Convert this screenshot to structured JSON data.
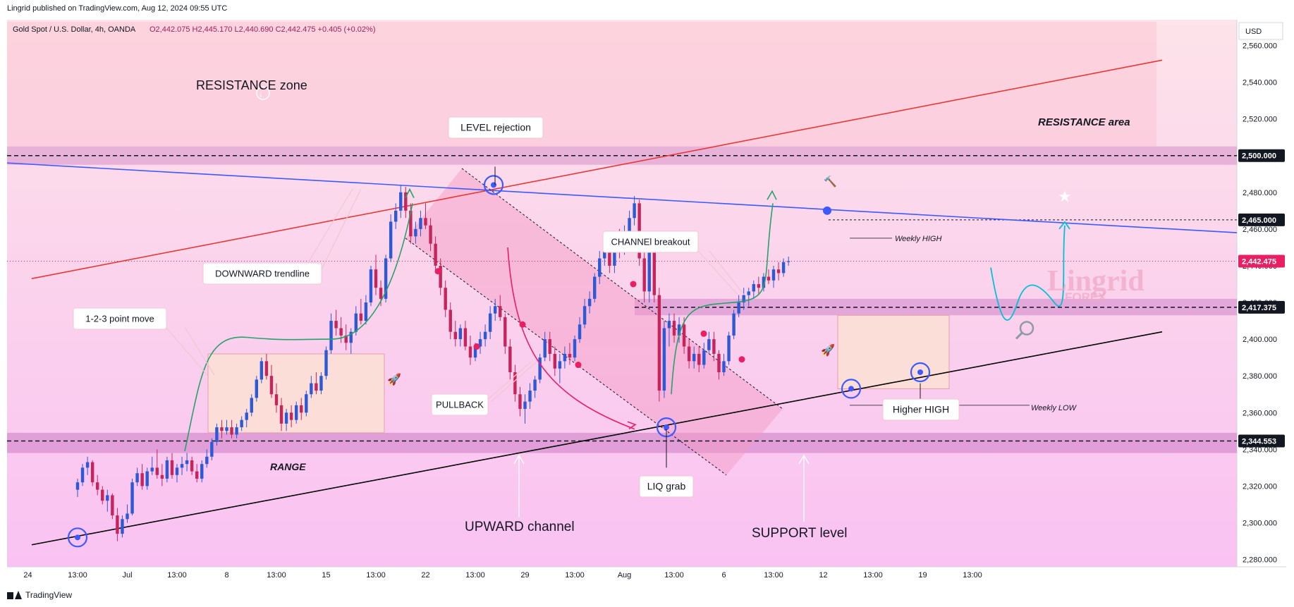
{
  "header": {
    "published": "Lingrid published on TradingView.com, Aug 12, 2024 09:55 UTC"
  },
  "footer": {
    "brand": "TradingView"
  },
  "watermark": {
    "main": "Lingrid",
    "sub": "FOREX"
  },
  "chart_data": {
    "type": "candlestick",
    "title": "Gold Spot / U.S. Dollar, 4h, OANDA",
    "ohlc_text": "O2,442.075  H2,445.170  L2,440.690  C2,442.475  +0.405 (+0.02%)",
    "currency": "USD",
    "y_range": [
      2276,
      2574
    ],
    "y_ticks": [
      2280,
      2300,
      2320,
      2340,
      2360,
      2380,
      2400,
      2420,
      2440,
      2460,
      2480,
      2500,
      2520,
      2540,
      2560
    ],
    "y_tick_labels": [
      "2,280.000",
      "2,300.000",
      "2,320.000",
      "2,340.000",
      "2,360.000",
      "2,380.000",
      "2,400.000",
      "2,420.000",
      "2,440.000",
      "2,460.000",
      "2,480.000",
      "2,500.000",
      "2,520.000",
      "2,540.000",
      "2,560.000"
    ],
    "x_ticks": [
      {
        "i": -10,
        "label": "24"
      },
      {
        "i": 0,
        "label": "13:00"
      },
      {
        "i": 10,
        "label": "Jul"
      },
      {
        "i": 20,
        "label": "13:00"
      },
      {
        "i": 30,
        "label": "8"
      },
      {
        "i": 40,
        "label": "13:00"
      },
      {
        "i": 50,
        "label": "15"
      },
      {
        "i": 60,
        "label": "13:00"
      },
      {
        "i": 70,
        "label": "22"
      },
      {
        "i": 80,
        "label": "13:00"
      },
      {
        "i": 90,
        "label": "29"
      },
      {
        "i": 100,
        "label": "13:00"
      },
      {
        "i": 110,
        "label": "Aug"
      },
      {
        "i": 120,
        "label": "13:00"
      },
      {
        "i": 130,
        "label": "6"
      },
      {
        "i": 140,
        "label": "13:00"
      },
      {
        "i": 150,
        "label": "12"
      },
      {
        "i": 160,
        "label": "13:00"
      },
      {
        "i": 170,
        "label": "19"
      },
      {
        "i": 180,
        "label": "13:00"
      }
    ],
    "price_tags": [
      {
        "value": 2500.0,
        "label": "2,500.000",
        "style": "dark"
      },
      {
        "value": 2465.0,
        "label": "2,465.000",
        "style": "dark"
      },
      {
        "value": 2442.475,
        "label": "2,442.475",
        "style": "accent"
      },
      {
        "value": 2417.375,
        "label": "2,417.375",
        "style": "dark"
      },
      {
        "value": 2344.553,
        "label": "2,344.553",
        "style": "dark"
      }
    ],
    "annotations": {
      "resistance_zone": "RESISTANCE zone",
      "resistance_area": "RESISTANCE area",
      "level_rejection": "LEVEL rejection",
      "downward_trendline": "DOWNWARD trendline",
      "point_move": "1-2-3 point move",
      "channel_breakout": "CHANNEl breakout",
      "pullback": "PULLBACK",
      "range": "RANGE",
      "liq_grab": "LIQ grab",
      "upward_channel": "UPWARD channel",
      "support_level": "SUPPORT level",
      "higher_high": "Higher HIGH",
      "weekly_high": "Weekly HIGH",
      "weekly_low": "Weekly LOW"
    },
    "colors": {
      "up": "#2c59d6",
      "down": "#c8245c",
      "accent": "#e91e63",
      "resistance_line": "#e53935",
      "trend_line": "#3d5afe",
      "support_line": "#000000"
    },
    "candles": [
      [
        2318,
        2324,
        2314,
        2322
      ],
      [
        2322,
        2332,
        2320,
        2330
      ],
      [
        2330,
        2336,
        2326,
        2333
      ],
      [
        2333,
        2334,
        2320,
        2322
      ],
      [
        2322,
        2326,
        2315,
        2318
      ],
      [
        2318,
        2320,
        2310,
        2312
      ],
      [
        2312,
        2318,
        2306,
        2315
      ],
      [
        2315,
        2316,
        2302,
        2304
      ],
      [
        2304,
        2308,
        2290,
        2294
      ],
      [
        2294,
        2304,
        2292,
        2302
      ],
      [
        2302,
        2310,
        2300,
        2305
      ],
      [
        2305,
        2324,
        2304,
        2322
      ],
      [
        2322,
        2330,
        2320,
        2327
      ],
      [
        2327,
        2332,
        2318,
        2320
      ],
      [
        2320,
        2330,
        2318,
        2328
      ],
      [
        2328,
        2336,
        2326,
        2330
      ],
      [
        2330,
        2340,
        2324,
        2326
      ],
      [
        2326,
        2332,
        2320,
        2324
      ],
      [
        2324,
        2336,
        2322,
        2334
      ],
      [
        2334,
        2338,
        2324,
        2326
      ],
      [
        2326,
        2332,
        2322,
        2330
      ],
      [
        2330,
        2336,
        2326,
        2332
      ],
      [
        2332,
        2338,
        2328,
        2334
      ],
      [
        2334,
        2336,
        2326,
        2328
      ],
      [
        2328,
        2332,
        2322,
        2324
      ],
      [
        2324,
        2334,
        2322,
        2332
      ],
      [
        2332,
        2340,
        2330,
        2336
      ],
      [
        2336,
        2346,
        2334,
        2344
      ],
      [
        2344,
        2354,
        2342,
        2352
      ],
      [
        2352,
        2356,
        2346,
        2350
      ],
      [
        2350,
        2356,
        2348,
        2352
      ],
      [
        2352,
        2356,
        2346,
        2348
      ],
      [
        2348,
        2354,
        2346,
        2352
      ],
      [
        2352,
        2358,
        2350,
        2356
      ],
      [
        2356,
        2362,
        2352,
        2360
      ],
      [
        2360,
        2370,
        2358,
        2368
      ],
      [
        2368,
        2380,
        2366,
        2378
      ],
      [
        2378,
        2390,
        2376,
        2388
      ],
      [
        2388,
        2392,
        2378,
        2380
      ],
      [
        2380,
        2386,
        2368,
        2370
      ],
      [
        2370,
        2376,
        2360,
        2364
      ],
      [
        2364,
        2368,
        2350,
        2354
      ],
      [
        2354,
        2362,
        2350,
        2360
      ],
      [
        2360,
        2364,
        2352,
        2356
      ],
      [
        2356,
        2366,
        2354,
        2364
      ],
      [
        2364,
        2368,
        2356,
        2360
      ],
      [
        2360,
        2372,
        2358,
        2370
      ],
      [
        2370,
        2380,
        2368,
        2376
      ],
      [
        2376,
        2382,
        2370,
        2372
      ],
      [
        2372,
        2382,
        2370,
        2380
      ],
      [
        2380,
        2396,
        2378,
        2394
      ],
      [
        2394,
        2414,
        2392,
        2410
      ],
      [
        2410,
        2416,
        2402,
        2406
      ],
      [
        2406,
        2412,
        2398,
        2402
      ],
      [
        2402,
        2408,
        2394,
        2398
      ],
      [
        2398,
        2406,
        2392,
        2404
      ],
      [
        2404,
        2418,
        2402,
        2414
      ],
      [
        2414,
        2422,
        2408,
        2410
      ],
      [
        2410,
        2424,
        2408,
        2420
      ],
      [
        2420,
        2440,
        2418,
        2438
      ],
      [
        2438,
        2446,
        2424,
        2428
      ],
      [
        2428,
        2432,
        2418,
        2422
      ],
      [
        2422,
        2446,
        2420,
        2444
      ],
      [
        2444,
        2468,
        2442,
        2464
      ],
      [
        2464,
        2474,
        2460,
        2470
      ],
      [
        2470,
        2484,
        2466,
        2480
      ],
      [
        2480,
        2483,
        2466,
        2470
      ],
      [
        2470,
        2474,
        2452,
        2456
      ],
      [
        2456,
        2464,
        2452,
        2460
      ],
      [
        2460,
        2470,
        2456,
        2466
      ],
      [
        2466,
        2474,
        2460,
        2462
      ],
      [
        2462,
        2466,
        2448,
        2452
      ],
      [
        2452,
        2456,
        2436,
        2440
      ],
      [
        2440,
        2444,
        2424,
        2428
      ],
      [
        2428,
        2432,
        2412,
        2416
      ],
      [
        2416,
        2420,
        2400,
        2404
      ],
      [
        2404,
        2410,
        2396,
        2400
      ],
      [
        2400,
        2408,
        2396,
        2406
      ],
      [
        2406,
        2410,
        2394,
        2396
      ],
      [
        2396,
        2402,
        2386,
        2390
      ],
      [
        2390,
        2398,
        2388,
        2396
      ],
      [
        2396,
        2404,
        2392,
        2400
      ],
      [
        2400,
        2408,
        2396,
        2404
      ],
      [
        2404,
        2418,
        2400,
        2414
      ],
      [
        2414,
        2422,
        2410,
        2418
      ],
      [
        2418,
        2424,
        2410,
        2412
      ],
      [
        2412,
        2414,
        2392,
        2396
      ],
      [
        2396,
        2400,
        2378,
        2382
      ],
      [
        2382,
        2386,
        2366,
        2370
      ],
      [
        2370,
        2374,
        2358,
        2362
      ],
      [
        2362,
        2370,
        2354,
        2366
      ],
      [
        2366,
        2376,
        2362,
        2372
      ],
      [
        2372,
        2380,
        2368,
        2378
      ],
      [
        2378,
        2392,
        2376,
        2390
      ],
      [
        2390,
        2404,
        2388,
        2400
      ],
      [
        2400,
        2404,
        2388,
        2392
      ],
      [
        2392,
        2396,
        2380,
        2384
      ],
      [
        2384,
        2392,
        2376,
        2388
      ],
      [
        2388,
        2396,
        2384,
        2392
      ],
      [
        2392,
        2398,
        2386,
        2390
      ],
      [
        2390,
        2402,
        2388,
        2400
      ],
      [
        2400,
        2412,
        2398,
        2408
      ],
      [
        2408,
        2422,
        2406,
        2418
      ],
      [
        2418,
        2426,
        2414,
        2422
      ],
      [
        2422,
        2436,
        2420,
        2434
      ],
      [
        2434,
        2448,
        2430,
        2444
      ],
      [
        2444,
        2456,
        2440,
        2452
      ],
      [
        2452,
        2456,
        2436,
        2440
      ],
      [
        2440,
        2452,
        2436,
        2450
      ],
      [
        2450,
        2460,
        2444,
        2448
      ],
      [
        2448,
        2462,
        2446,
        2458
      ],
      [
        2458,
        2470,
        2454,
        2466
      ],
      [
        2466,
        2478,
        2462,
        2474
      ],
      [
        2474,
        2476,
        2440,
        2444
      ],
      [
        2444,
        2452,
        2420,
        2426
      ],
      [
        2426,
        2456,
        2420,
        2452
      ],
      [
        2452,
        2456,
        2420,
        2424
      ],
      [
        2424,
        2428,
        2366,
        2372
      ],
      [
        2372,
        2410,
        2368,
        2406
      ],
      [
        2406,
        2414,
        2396,
        2410
      ],
      [
        2410,
        2414,
        2398,
        2402
      ],
      [
        2402,
        2412,
        2398,
        2408
      ],
      [
        2408,
        2412,
        2392,
        2396
      ],
      [
        2396,
        2400,
        2384,
        2388
      ],
      [
        2388,
        2396,
        2384,
        2392
      ],
      [
        2392,
        2396,
        2382,
        2386
      ],
      [
        2386,
        2398,
        2384,
        2394
      ],
      [
        2394,
        2404,
        2392,
        2400
      ],
      [
        2400,
        2404,
        2388,
        2392
      ],
      [
        2392,
        2394,
        2378,
        2382
      ],
      [
        2382,
        2392,
        2380,
        2388
      ],
      [
        2388,
        2404,
        2386,
        2402
      ],
      [
        2402,
        2416,
        2400,
        2414
      ],
      [
        2414,
        2424,
        2412,
        2420
      ],
      [
        2420,
        2428,
        2416,
        2424
      ],
      [
        2424,
        2428,
        2418,
        2426
      ],
      [
        2426,
        2432,
        2422,
        2430
      ],
      [
        2430,
        2434,
        2424,
        2428
      ],
      [
        2428,
        2436,
        2426,
        2434
      ],
      [
        2434,
        2438,
        2430,
        2432
      ],
      [
        2432,
        2440,
        2428,
        2438
      ],
      [
        2438,
        2442,
        2432,
        2436
      ],
      [
        2436,
        2444,
        2434,
        2442
      ],
      [
        2442,
        2445,
        2440,
        2442.5
      ]
    ]
  }
}
